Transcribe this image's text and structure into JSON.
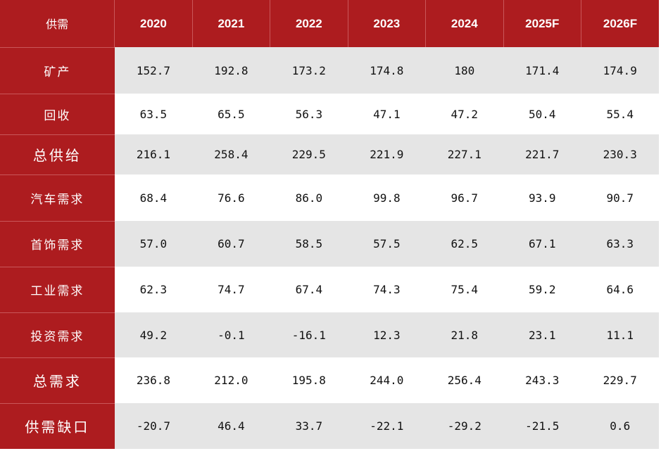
{
  "table": {
    "header": [
      "供需",
      "2020",
      "2021",
      "2022",
      "2023",
      "2024",
      "2025F",
      "2026F"
    ],
    "rows": [
      [
        "矿产",
        "152.7",
        "192.8",
        "173.2",
        "174.8",
        "180",
        "171.4",
        "174.9"
      ],
      [
        "回收",
        "63.5",
        "65.5",
        "56.3",
        "47.1",
        "47.2",
        "50.4",
        "55.4"
      ],
      [
        "总供给",
        "216.1",
        "258.4",
        "229.5",
        "221.9",
        "227.1",
        "221.7",
        "230.3"
      ],
      [
        "汽车需求",
        "68.4",
        "76.6",
        "86.0",
        "99.8",
        "96.7",
        "93.9",
        "90.7"
      ],
      [
        "首饰需求",
        "57.0",
        "60.7",
        "58.5",
        "57.5",
        "62.5",
        "67.1",
        "63.3"
      ],
      [
        "工业需求",
        "62.3",
        "74.7",
        "67.4",
        "74.3",
        "75.4",
        "59.2",
        "64.6"
      ],
      [
        "投资需求",
        "49.2",
        "-0.1",
        "-16.1",
        "12.3",
        "21.8",
        "23.1",
        "11.1"
      ],
      [
        "总需求",
        "236.8",
        "212.0",
        "195.8",
        "244.0",
        "256.4",
        "243.3",
        "229.7"
      ],
      [
        "供需缺口",
        "-20.7",
        "46.4",
        "33.7",
        "-22.1",
        "-29.2",
        "-21.5",
        "0.6"
      ]
    ]
  }
}
